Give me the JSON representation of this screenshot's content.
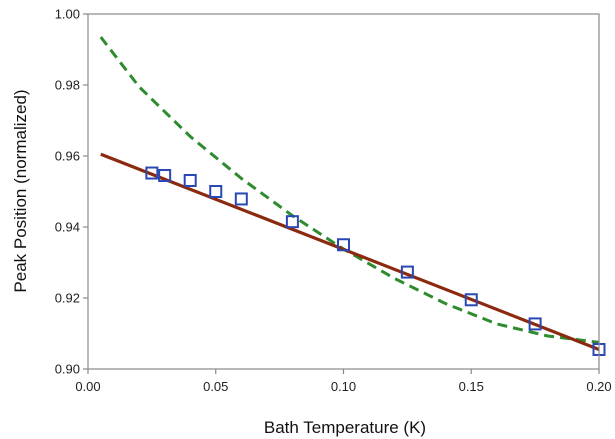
{
  "chart_data": {
    "type": "scatter",
    "title": "",
    "xlabel": "Bath Temperature  (K)",
    "ylabel": "Peak Position (normalized)",
    "xlim": [
      0.0,
      0.2
    ],
    "ylim": [
      0.9,
      1.0
    ],
    "xticks": [
      0.0,
      0.05,
      0.1,
      0.15,
      0.2
    ],
    "yticks": [
      0.9,
      0.92,
      0.94,
      0.96,
      0.98,
      1.0
    ],
    "xtick_labels": [
      "0.00",
      "0.05",
      "0.10",
      "0.15",
      "0.20"
    ],
    "ytick_labels": [
      "0.90",
      "0.92",
      "0.94",
      "0.96",
      "0.98",
      "1.00"
    ],
    "grid": false,
    "legend": "none",
    "series": [
      {
        "kind": "line",
        "style": "dashed",
        "color": "#2e8b2e",
        "x": [
          0.005,
          0.02,
          0.04,
          0.06,
          0.08,
          0.1,
          0.12,
          0.14,
          0.16,
          0.18,
          0.2
        ],
        "y": [
          0.9935,
          0.9795,
          0.9655,
          0.9537,
          0.9432,
          0.9338,
          0.9255,
          0.9184,
          0.9127,
          0.9093,
          0.9075
        ]
      },
      {
        "kind": "line",
        "style": "solid",
        "color": "#8b2a10",
        "x": [
          0.005,
          0.2
        ],
        "y": [
          0.9605,
          0.9055
        ]
      },
      {
        "kind": "markers",
        "marker": "square-open",
        "color": "#2a48b4",
        "x": [
          0.025,
          0.03,
          0.04,
          0.05,
          0.06,
          0.08,
          0.1,
          0.125,
          0.15,
          0.175,
          0.2
        ],
        "y": [
          0.9552,
          0.9545,
          0.9531,
          0.95,
          0.9479,
          0.9415,
          0.935,
          0.9273,
          0.9195,
          0.9127,
          0.9055
        ]
      }
    ]
  }
}
